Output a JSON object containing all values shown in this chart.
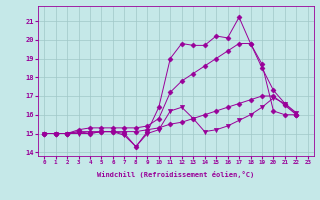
{
  "xlabel": "Windchill (Refroidissement éolien,°C)",
  "xlim": [
    -0.5,
    23.5
  ],
  "ylim": [
    13.8,
    21.8
  ],
  "yticks": [
    14,
    15,
    16,
    17,
    18,
    19,
    20,
    21
  ],
  "xticks": [
    0,
    1,
    2,
    3,
    4,
    5,
    6,
    7,
    8,
    9,
    10,
    11,
    12,
    13,
    14,
    15,
    16,
    17,
    18,
    19,
    20,
    21,
    22,
    23
  ],
  "bg_color": "#c5e8e8",
  "line_color": "#990099",
  "grid_color": "#a0c8c8",
  "series": [
    {
      "x": [
        0,
        1,
        2,
        3,
        4,
        5,
        6,
        7,
        8,
        9,
        10,
        11,
        12,
        13,
        14,
        15,
        16,
        17,
        18,
        19,
        20,
        21,
        22
      ],
      "y": [
        15.0,
        15.0,
        15.0,
        15.1,
        15.0,
        15.1,
        15.1,
        15.0,
        14.3,
        15.1,
        16.4,
        19.0,
        19.8,
        19.7,
        19.7,
        20.2,
        20.1,
        21.2,
        19.8,
        18.7,
        16.2,
        16.0,
        16.0
      ],
      "marker": "D",
      "ms": 2.5
    },
    {
      "x": [
        0,
        1,
        2,
        3,
        4,
        5,
        6,
        7,
        8,
        9,
        10,
        11,
        12,
        13,
        14,
        15,
        16,
        17,
        18,
        19,
        20,
        21,
        22
      ],
      "y": [
        15.0,
        15.0,
        15.0,
        15.1,
        15.1,
        15.1,
        15.1,
        15.1,
        15.1,
        15.2,
        15.3,
        15.5,
        15.6,
        15.8,
        16.0,
        16.2,
        16.4,
        16.6,
        16.8,
        17.0,
        17.0,
        16.5,
        16.0
      ],
      "marker": "D",
      "ms": 2.5
    },
    {
      "x": [
        0,
        1,
        2,
        3,
        4,
        5,
        6,
        7,
        8,
        9,
        10,
        11,
        12,
        13,
        14,
        15,
        16,
        17,
        18,
        19,
        20,
        21,
        22
      ],
      "y": [
        15.0,
        15.0,
        15.0,
        15.2,
        15.3,
        15.3,
        15.3,
        15.3,
        15.3,
        15.4,
        15.8,
        17.2,
        17.8,
        18.2,
        18.6,
        19.0,
        19.4,
        19.8,
        19.8,
        18.5,
        17.3,
        16.6,
        16.0
      ],
      "marker": "D",
      "ms": 2.5
    },
    {
      "x": [
        0,
        1,
        2,
        3,
        4,
        5,
        6,
        7,
        8,
        9,
        10,
        11,
        12,
        13,
        14,
        15,
        16,
        17,
        18,
        19,
        20,
        21,
        22
      ],
      "y": [
        15.0,
        15.0,
        15.0,
        15.0,
        15.0,
        15.1,
        15.1,
        14.9,
        14.3,
        15.0,
        15.2,
        16.2,
        16.4,
        15.8,
        15.1,
        15.2,
        15.4,
        15.7,
        16.0,
        16.4,
        16.9,
        16.6,
        16.1
      ],
      "marker": "v",
      "ms": 3
    }
  ]
}
